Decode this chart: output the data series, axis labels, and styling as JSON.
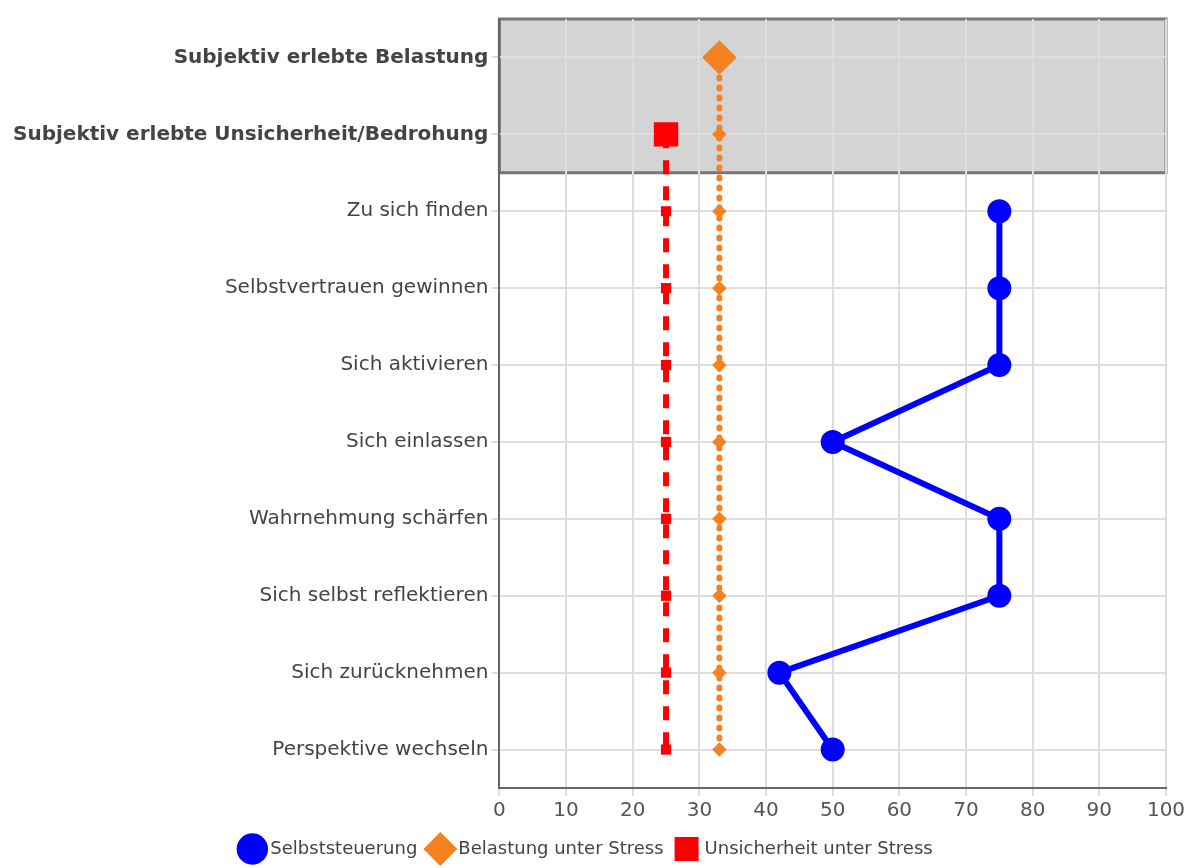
{
  "chart_data": {
    "type": "line",
    "orientation": "horizontal",
    "categories": [
      "Subjektiv erlebte Belastung",
      "Subjektiv erlebte Unsicherheit/Bedrohung",
      "Zu sich finden",
      "Selbstvertrauen gewinnen",
      "Sich aktivieren",
      "Sich einlassen",
      "Wahrnehmung schärfen",
      "Sich selbst reflektieren",
      "Sich zurücknehmen",
      "Perspektive wechseln"
    ],
    "series": [
      {
        "name": "Selbststeuerung",
        "type": "line",
        "color": "#0000ff",
        "marker": "circle",
        "line_style": "solid",
        "values": [
          null,
          null,
          75,
          75,
          75,
          50,
          75,
          75,
          42,
          50
        ]
      },
      {
        "name": "Belastung unter Stress",
        "type": "line",
        "color": "#f58220",
        "marker": "diamond",
        "line_style": "dotted",
        "values": [
          33,
          33,
          33,
          33,
          33,
          33,
          33,
          33,
          33,
          33
        ]
      },
      {
        "name": "Unsicherheit unter Stress",
        "type": "line",
        "color": "#ff0000",
        "marker": "square",
        "line_style": "dashed",
        "values": [
          null,
          25,
          25,
          25,
          25,
          25,
          25,
          25,
          25,
          25
        ]
      }
    ],
    "xlim": [
      0,
      100
    ],
    "xticks": [
      0,
      10,
      20,
      30,
      40,
      50,
      60,
      70,
      80,
      90,
      100
    ],
    "bands": [
      {
        "axis": "y",
        "from": "Subjektiv erlebte Belastung",
        "to": "Subjektiv erlebte Unsicherheit/Bedrohung",
        "color": "#d4d4d4"
      }
    ],
    "grid": true,
    "legend": "bottom"
  }
}
